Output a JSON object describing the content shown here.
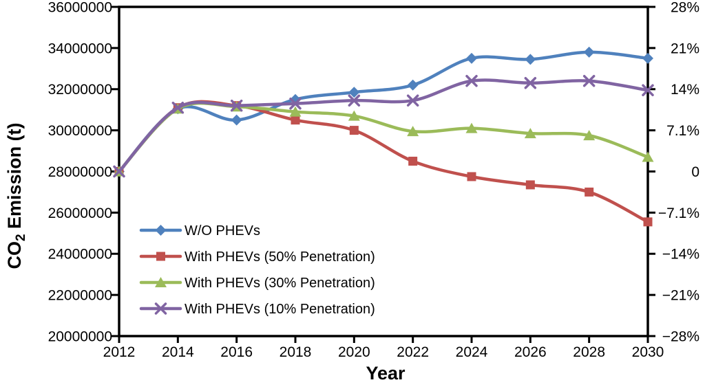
{
  "chart_data": {
    "type": "line",
    "xlabel": "Year",
    "ylabel": "CO2 Emission (t)",
    "ylabel_parts": {
      "pre": "CO",
      "sub": "2",
      "post": " Emission (t)"
    },
    "x": [
      2012,
      2014,
      2016,
      2018,
      2020,
      2022,
      2024,
      2026,
      2028,
      2030
    ],
    "x_tick_labels": [
      "2012",
      "2014",
      "2016",
      "2018",
      "2020",
      "2022",
      "2024",
      "2026",
      "2028",
      "2030"
    ],
    "ylim": [
      20000000,
      36000000
    ],
    "y_tick_values": [
      36000000,
      34000000,
      32000000,
      30000000,
      28000000,
      26000000,
      24000000,
      22000000,
      20000000
    ],
    "y_tick_labels_left": [
      "36000000",
      "34000000",
      "32000000",
      "30000000",
      "28000000",
      "26000000",
      "24000000",
      "22000000",
      "20000000"
    ],
    "y_tick_labels_right": [
      "28%",
      "21%",
      "14%",
      "7.1%",
      "0",
      "−7.1%",
      "−14%",
      "−21%",
      "−28%"
    ],
    "grid": false,
    "line_style": "smooth",
    "legend_position": "inside-lower-left",
    "series": [
      {
        "name": "W/O PHEVs",
        "color": "#4F81BD",
        "marker": "diamond",
        "values": [
          28000000,
          31050000,
          30500000,
          31500000,
          31850000,
          32200000,
          33500000,
          33450000,
          33800000,
          33500000
        ]
      },
      {
        "name": "With PHEVs (50% Penetration)",
        "color": "#C0504D",
        "marker": "square",
        "values": [
          28000000,
          31100000,
          31200000,
          30500000,
          30000000,
          28500000,
          27750000,
          27350000,
          27000000,
          25550000
        ]
      },
      {
        "name": "With PHEVs (30% Penetration)",
        "color": "#9BBB59",
        "marker": "triangle",
        "values": [
          28000000,
          31050000,
          31150000,
          30900000,
          30700000,
          29950000,
          30100000,
          29850000,
          29750000,
          28700000
        ]
      },
      {
        "name": "With PHEVs (10% Penetration)",
        "color": "#8064A2",
        "marker": "x",
        "values": [
          28000000,
          31100000,
          31200000,
          31300000,
          31450000,
          31450000,
          32400000,
          32300000,
          32400000,
          31950000
        ]
      }
    ],
    "axis_color": "#000000",
    "background_color": "#FFFFFF"
  }
}
